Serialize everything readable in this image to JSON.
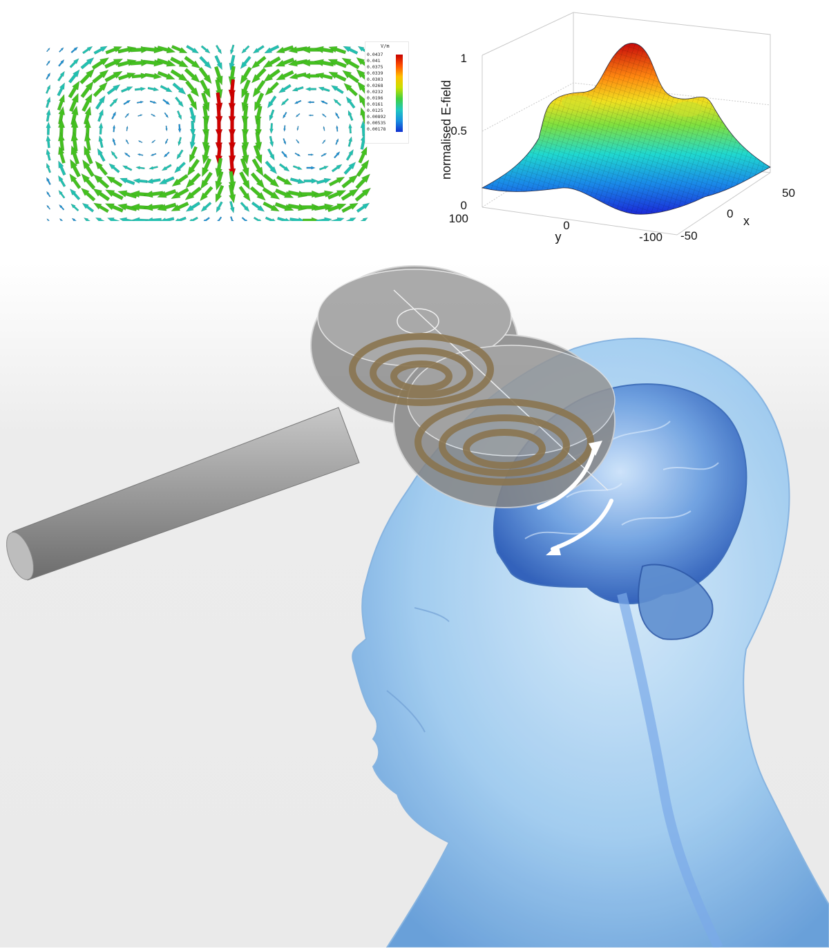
{
  "field_map": {
    "unit": "V/m",
    "colorbar_ticks": [
      "0.0437",
      "0.041",
      "0.0375",
      "0.0339",
      "0.0303",
      "0.0268",
      "0.0232",
      "0.0196",
      "0.0161",
      "0.0125",
      "0.00892",
      "0.00535",
      "0.00178"
    ],
    "colors": [
      "#d00000",
      "#ff6a00",
      "#ffd000",
      "#b8e000",
      "#44c020",
      "#22c0b0",
      "#1e90d0",
      "#1040d0"
    ]
  },
  "chart_data": {
    "type": "surface",
    "title": "",
    "zlabel": "normalised E-field",
    "xlabel": "x",
    "ylabel": "y",
    "z_ticks": [
      "0",
      "0.5",
      "1"
    ],
    "x_ticks": [
      "50",
      "0",
      "-50"
    ],
    "y_ticks": [
      "100",
      "0",
      "-100"
    ],
    "zlim": [
      0,
      1
    ],
    "peak_z": 1.0,
    "secondary_peaks_z": 0.72,
    "colormap": "jet"
  },
  "illustration": {
    "subject": "figure-eight TMS coil held over transparent human head with brain",
    "colors": {
      "coil": "#8a8a8a",
      "winding": "#8a7550",
      "head": "#9cc8ee",
      "brain": "#3f78c8"
    }
  }
}
